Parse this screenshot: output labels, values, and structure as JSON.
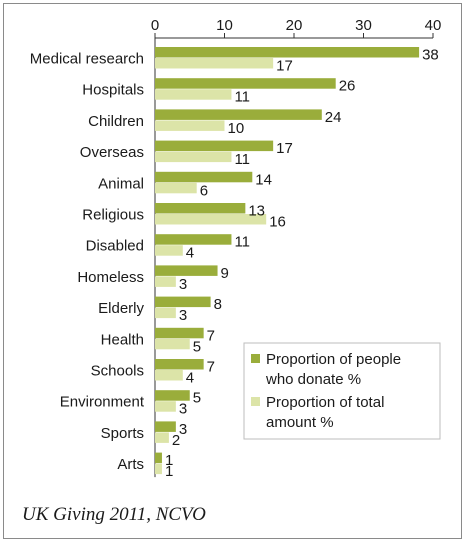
{
  "chart_data": {
    "type": "bar",
    "orientation": "horizontal",
    "categories": [
      "Medical research",
      "Hospitals",
      "Children",
      "Overseas",
      "Animal",
      "Religious",
      "Disabled",
      "Homeless",
      "Elderly",
      "Health",
      "Schools",
      "Environment",
      "Sports",
      "Arts"
    ],
    "series": [
      {
        "name": "Proportion of people who donate %",
        "values": [
          38,
          26,
          24,
          17,
          14,
          13,
          11,
          9,
          8,
          7,
          7,
          5,
          3,
          1
        ],
        "color": "#9aad3b"
      },
      {
        "name": "Proportion of total amount %",
        "values": [
          17,
          11,
          10,
          11,
          6,
          16,
          4,
          3,
          3,
          5,
          4,
          3,
          2,
          1
        ],
        "color": "#dce4a8"
      }
    ],
    "xlim": [
      0,
      40
    ],
    "xticks": [
      0,
      10,
      20,
      30,
      40
    ],
    "xaxis_position": "top",
    "grid": false,
    "legend_position": "bottom-right",
    "legend_lines": [
      [
        "Proportion of people",
        "who donate %"
      ],
      [
        "Proportion of total",
        "amount %"
      ]
    ]
  },
  "source": "UK Giving 2011, NCVO"
}
